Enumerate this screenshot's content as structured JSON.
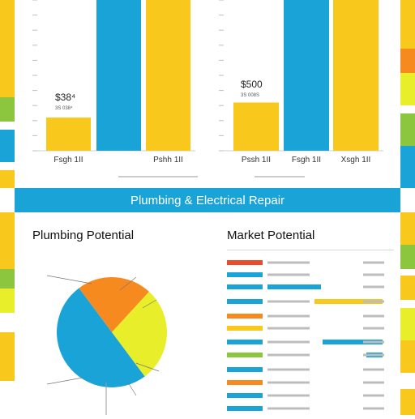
{
  "banner": {
    "title": "Plumbing & Electrical Repair"
  },
  "sections": {
    "left_title": "Plumbing Potential",
    "right_title": "Market Potential"
  },
  "colors": {
    "blue": "#1aa3d6",
    "yellow": "#f8c81c",
    "orange": "#f68a1e",
    "lime": "#e8ef2a",
    "green": "#8cc63f",
    "red": "#e94b2c",
    "gray": "#e6e6e6"
  },
  "chart_data": [
    {
      "type": "bar",
      "ylim": [
        0,
        100
      ],
      "categories": [
        "Fsgh 1II",
        "",
        "Pshh 1II"
      ],
      "values": [
        22,
        100,
        100
      ],
      "bar_colors": [
        "yellow",
        "blue",
        "yellow"
      ],
      "annotation": {
        "value": "$38⁴",
        "sub": "3S 038⁴"
      }
    },
    {
      "type": "bar",
      "ylim": [
        0,
        100
      ],
      "categories": [
        "Pssh 1II",
        "Fsgh 1II",
        "Xsgh 1II"
      ],
      "values": [
        32,
        100,
        100
      ],
      "bar_colors": [
        "yellow",
        "blue",
        "yellow"
      ],
      "annotation": {
        "value": "$500",
        "sub": "3S 008S"
      }
    },
    {
      "type": "pie",
      "slices": [
        {
          "value": 22,
          "color": "orange"
        },
        {
          "value": 28,
          "color": "lime"
        },
        {
          "value": 50,
          "color": "blue"
        }
      ]
    }
  ]
}
